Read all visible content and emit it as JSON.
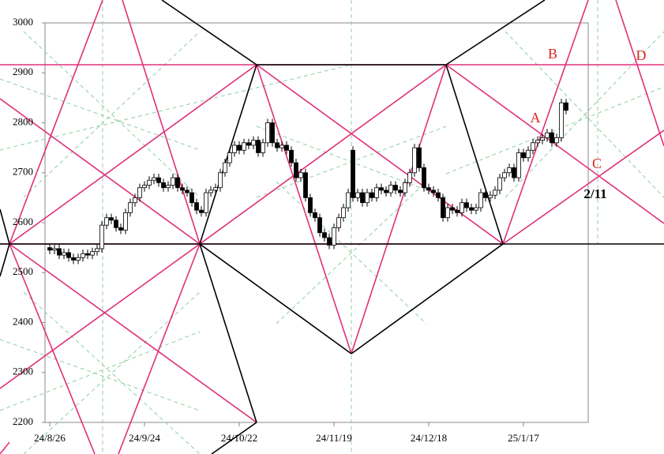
{
  "chart_data": {
    "type": "candlestick",
    "categories": [
      "24/8/26",
      null,
      null,
      null,
      null,
      null,
      null,
      null,
      null,
      null,
      null,
      null,
      null,
      null,
      null,
      null,
      null,
      null,
      null,
      null,
      "24/9/24",
      null,
      null,
      null,
      null,
      null,
      null,
      null,
      null,
      null,
      null,
      null,
      null,
      null,
      null,
      null,
      null,
      null,
      null,
      null,
      "24/10/22",
      null,
      null,
      null,
      null,
      null,
      null,
      null,
      null,
      null,
      null,
      null,
      null,
      null,
      null,
      null,
      null,
      null,
      null,
      null,
      "24/11/19",
      null,
      null,
      null,
      null,
      null,
      null,
      null,
      null,
      null,
      null,
      null,
      null,
      null,
      null,
      null,
      null,
      null,
      null,
      null,
      "24/12/18",
      null,
      null,
      null,
      null,
      null,
      null,
      null,
      null,
      null,
      null,
      null,
      null,
      null,
      null,
      null,
      null,
      null,
      null,
      null,
      "25/1/17",
      null,
      null,
      null,
      null,
      null,
      null,
      null,
      null,
      null
    ],
    "open": [
      2550,
      2545,
      2548,
      2535,
      2540,
      2530,
      2525,
      2530,
      2538,
      2535,
      2542,
      2548,
      2595,
      2610,
      2605,
      2590,
      2585,
      2620,
      2640,
      2650,
      2670,
      2675,
      2685,
      2690,
      2680,
      2670,
      2675,
      2690,
      2670,
      2665,
      2660,
      2640,
      2625,
      2620,
      2660,
      2665,
      2670,
      2700,
      2720,
      2740,
      2755,
      2745,
      2760,
      2755,
      2765,
      2740,
      2760,
      2800,
      2760,
      2750,
      2755,
      2745,
      2720,
      2690,
      2700,
      2650,
      2620,
      2610,
      2580,
      2570,
      2555,
      2590,
      2610,
      2630,
      2745,
      2650,
      2660,
      2640,
      2660,
      2650,
      2670,
      2665,
      2660,
      2675,
      2665,
      2660,
      2680,
      2700,
      2750,
      2710,
      2670,
      2665,
      2660,
      2650,
      2610,
      2630,
      2625,
      2620,
      2640,
      2630,
      2625,
      2630,
      2660,
      2650,
      2655,
      2665,
      2690,
      2700,
      2710,
      2690,
      2740,
      2730,
      2745,
      2760,
      2765,
      2770,
      2780,
      2760,
      2770,
      2840
    ],
    "high": [
      2558,
      2556,
      2556,
      2548,
      2548,
      2538,
      2538,
      2546,
      2546,
      2550,
      2556,
      2603,
      2618,
      2618,
      2613,
      2598,
      2628,
      2648,
      2658,
      2678,
      2683,
      2693,
      2698,
      2698,
      2688,
      2683,
      2698,
      2698,
      2678,
      2673,
      2668,
      2648,
      2633,
      2668,
      2673,
      2678,
      2708,
      2728,
      2748,
      2763,
      2763,
      2768,
      2768,
      2773,
      2773,
      2768,
      2808,
      2808,
      2768,
      2763,
      2763,
      2753,
      2728,
      2708,
      2708,
      2658,
      2628,
      2618,
      2588,
      2578,
      2598,
      2618,
      2638,
      2668,
      2753,
      2668,
      2668,
      2668,
      2668,
      2678,
      2678,
      2673,
      2683,
      2683,
      2673,
      2688,
      2708,
      2758,
      2758,
      2718,
      2678,
      2673,
      2668,
      2658,
      2638,
      2638,
      2633,
      2648,
      2648,
      2638,
      2638,
      2668,
      2668,
      2663,
      2673,
      2698,
      2708,
      2718,
      2718,
      2748,
      2748,
      2753,
      2768,
      2773,
      2778,
      2788,
      2788,
      2778,
      2848,
      2848
    ],
    "low": [
      2537,
      2537,
      2527,
      2527,
      2522,
      2517,
      2517,
      2522,
      2527,
      2527,
      2534,
      2540,
      2587,
      2597,
      2582,
      2577,
      2577,
      2612,
      2632,
      2642,
      2662,
      2667,
      2677,
      2672,
      2662,
      2662,
      2667,
      2662,
      2657,
      2652,
      2632,
      2617,
      2612,
      2612,
      2652,
      2657,
      2662,
      2692,
      2712,
      2732,
      2737,
      2737,
      2747,
      2747,
      2732,
      2732,
      2752,
      2752,
      2742,
      2742,
      2737,
      2712,
      2682,
      2682,
      2642,
      2612,
      2602,
      2572,
      2562,
      2547,
      2547,
      2582,
      2602,
      2622,
      2642,
      2642,
      2632,
      2632,
      2642,
      2642,
      2657,
      2652,
      2652,
      2657,
      2652,
      2652,
      2672,
      2692,
      2702,
      2662,
      2657,
      2652,
      2642,
      2602,
      2602,
      2617,
      2612,
      2612,
      2622,
      2617,
      2617,
      2622,
      2642,
      2642,
      2647,
      2657,
      2682,
      2692,
      2682,
      2682,
      2722,
      2722,
      2737,
      2752,
      2757,
      2762,
      2752,
      2752,
      2762,
      2817
    ],
    "close": [
      2545,
      2548,
      2535,
      2540,
      2530,
      2525,
      2530,
      2538,
      2535,
      2542,
      2548,
      2595,
      2610,
      2605,
      2590,
      2585,
      2620,
      2640,
      2650,
      2670,
      2675,
      2685,
      2690,
      2680,
      2670,
      2675,
      2690,
      2670,
      2665,
      2660,
      2640,
      2625,
      2620,
      2660,
      2665,
      2670,
      2700,
      2720,
      2740,
      2755,
      2745,
      2760,
      2755,
      2765,
      2740,
      2760,
      2800,
      2760,
      2750,
      2755,
      2745,
      2720,
      2690,
      2700,
      2650,
      2620,
      2610,
      2580,
      2570,
      2555,
      2590,
      2610,
      2630,
      2660,
      2650,
      2660,
      2640,
      2660,
      2650,
      2670,
      2665,
      2660,
      2675,
      2665,
      2660,
      2680,
      2700,
      2750,
      2710,
      2670,
      2665,
      2660,
      2650,
      2610,
      2630,
      2625,
      2620,
      2640,
      2630,
      2625,
      2630,
      2660,
      2650,
      2655,
      2665,
      2690,
      2700,
      2710,
      2690,
      2740,
      2730,
      2745,
      2760,
      2765,
      2770,
      2780,
      2760,
      2770,
      2840,
      2825
    ],
    "up_color": "#ffffff",
    "down_color": "#000000",
    "ylim": [
      2200,
      3000
    ],
    "yticks": [
      2200,
      2300,
      2400,
      2500,
      2600,
      2700,
      2800,
      2900,
      3000
    ],
    "annotations": [
      {
        "text": "A",
        "color": "#e02020"
      },
      {
        "text": "B",
        "color": "#e02020"
      },
      {
        "text": "C",
        "color": "#e02020"
      },
      {
        "text": "D",
        "color": "#e02020"
      },
      {
        "text": "2/11",
        "color": "#000000"
      }
    ]
  }
}
